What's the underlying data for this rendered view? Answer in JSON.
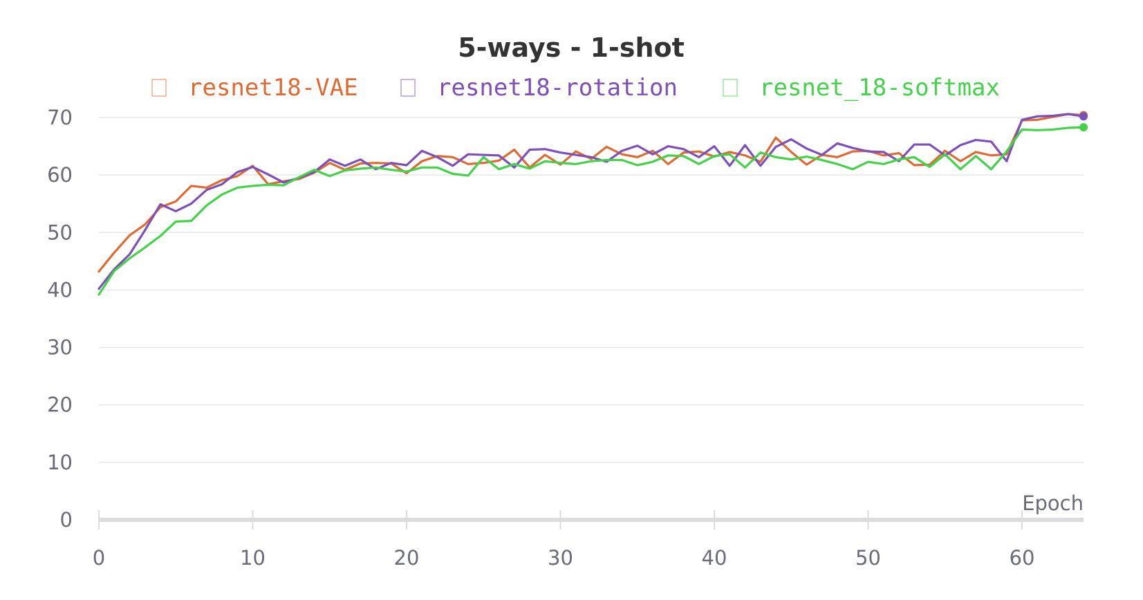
{
  "chart_data": {
    "type": "line",
    "title": "5-ways - 1-shot",
    "xlabel": "Epoch",
    "ylabel": "",
    "xlim": [
      0,
      64
    ],
    "ylim": [
      0,
      70
    ],
    "xticks": [
      0,
      10,
      20,
      30,
      40,
      50,
      60
    ],
    "yticks": [
      0,
      10,
      20,
      30,
      40,
      50,
      60,
      70
    ],
    "grid": true,
    "legend_position": "top-center",
    "series": [
      {
        "name": "resnet18-VAE",
        "color": "#dd6b33",
        "values": [
          43.2,
          46.5,
          49.5,
          51.4,
          54.4,
          55.4,
          58.1,
          57.8,
          59.1,
          59.8,
          61.6,
          58.4,
          58.9,
          59.3,
          60.4,
          62.1,
          60.9,
          62.0,
          62.1,
          62.0,
          60.3,
          62.4,
          63.3,
          63.1,
          61.9,
          62.1,
          62.5,
          64.4,
          61.3,
          63.5,
          61.8,
          64.1,
          62.8,
          64.9,
          63.6,
          63.1,
          64.2,
          61.9,
          63.9,
          64.1,
          63.2,
          64.0,
          63.4,
          62.3,
          66.5,
          64.0,
          61.8,
          63.5,
          63.1,
          64.1,
          64.2,
          63.4,
          63.8,
          61.7,
          61.8,
          64.2,
          62.4,
          64.0,
          63.4,
          63.6,
          69.5,
          69.6,
          70.1,
          70.6,
          70.4
        ]
      },
      {
        "name": "resnet18-rotation",
        "color": "#7d4fb8",
        "values": [
          40.2,
          43.6,
          46.2,
          50.4,
          54.9,
          53.7,
          55.0,
          57.4,
          58.4,
          60.5,
          61.4,
          60.1,
          58.7,
          59.5,
          60.5,
          62.7,
          61.6,
          62.7,
          61.0,
          62.1,
          61.7,
          64.2,
          63.1,
          61.6,
          63.6,
          63.5,
          63.4,
          61.3,
          64.4,
          64.5,
          63.9,
          63.5,
          63.1,
          62.3,
          64.2,
          65.1,
          63.6,
          65.0,
          64.5,
          63.1,
          65.0,
          61.6,
          65.2,
          61.6,
          64.9,
          66.2,
          64.6,
          63.5,
          65.5,
          64.7,
          64.1,
          64.0,
          62.4,
          65.3,
          65.3,
          63.4,
          65.2,
          66.1,
          65.8,
          62.4,
          69.6,
          70.2,
          70.3,
          70.6,
          70.2
        ]
      },
      {
        "name": "resnet_18-softmax",
        "color": "#44d24a",
        "values": [
          39.2,
          43.3,
          45.5,
          47.4,
          49.4,
          51.9,
          52.0,
          54.7,
          56.6,
          57.8,
          58.1,
          58.3,
          58.2,
          59.6,
          60.9,
          59.8,
          60.8,
          61.1,
          61.3,
          60.9,
          60.6,
          61.3,
          61.3,
          60.2,
          59.9,
          63.1,
          61.0,
          61.9,
          61.1,
          62.4,
          62.1,
          61.9,
          62.4,
          62.6,
          62.6,
          61.7,
          62.3,
          63.4,
          63.3,
          61.9,
          63.3,
          63.6,
          61.3,
          63.9,
          63.1,
          62.7,
          63.2,
          62.6,
          61.9,
          61.0,
          62.3,
          61.9,
          62.7,
          63.1,
          61.4,
          63.6,
          61.0,
          63.3,
          61.0,
          64.1,
          67.9,
          67.8,
          67.9,
          68.2,
          68.3
        ]
      }
    ]
  }
}
